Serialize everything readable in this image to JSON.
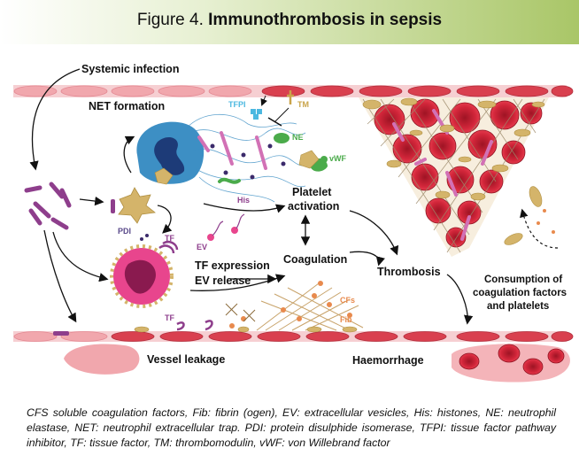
{
  "header": {
    "figure_prefix": "Figure 4.",
    "figure_title": "Immunothrombosis in sepsis"
  },
  "labels": {
    "systemic_infection": "Systemic infection",
    "net_formation": "NET formation",
    "tfpi": "TFPI",
    "tm": "TM",
    "ne": "NE",
    "vwf": "vWF",
    "his": "His",
    "platelet_activation_1": "Platelet",
    "platelet_activation_2": "activation",
    "pdi": "PDI",
    "tf_top": "TF",
    "ev": "EV",
    "tf_expression": "TF expression",
    "ev_release": "EV release",
    "coagulation": "Coagulation",
    "thrombosis": "Thrombosis",
    "consumption_1": "Consumption of",
    "consumption_2": "coagulation factors",
    "consumption_3": "and platelets",
    "tf_bottom": "TF",
    "cfs": "CFs",
    "fib": "Fib",
    "vessel_leakage": "Vessel leakage",
    "haemorrhage": "Haemorrhage"
  },
  "caption": "CFS soluble coagulation factors, Fib: fibrin (ogen), EV: extracellular vesicles, His: histones, NE: neutrophil elastase, NET: neutrophil extracellular trap. PDI: protein disulphide isomerase, TFPI: tissue factor pathway inhibitor, TF: tissue factor, TM: thrombomodulin, vWF: von Willebrand factor",
  "colors": {
    "vessel_cell": "#f1a7ad",
    "vessel_cell_dark": "#d9404f",
    "platelet": "#d4b46a",
    "rbc": "#cc1f32",
    "neutrophil_blue": "#3d8fc4",
    "net_magenta": "#b8359a",
    "bacteria": "#8e3e8c",
    "green": "#4bab4b",
    "tfpi_blue": "#4cb8e0",
    "banner": "#a9c667"
  },
  "icons": [
    "bacteria-icon",
    "neutrophil-icon",
    "platelet-icon",
    "red-blood-cell-icon",
    "fibrin-mesh-icon"
  ]
}
